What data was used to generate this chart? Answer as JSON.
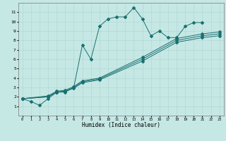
{
  "xlabel": "Humidex (Indice chaleur)",
  "xlim": [
    -0.5,
    23.5
  ],
  "ylim": [
    0,
    12
  ],
  "xticks": [
    0,
    1,
    2,
    3,
    4,
    5,
    6,
    7,
    8,
    9,
    10,
    11,
    12,
    13,
    14,
    15,
    16,
    17,
    18,
    19,
    20,
    21,
    22,
    23
  ],
  "yticks": [
    1,
    2,
    3,
    4,
    5,
    6,
    7,
    8,
    9,
    10,
    11
  ],
  "bg_color": "#c5e8e5",
  "line_color": "#1a7070",
  "grid_color": "#aed4d0",
  "line1_x": [
    0,
    1,
    2,
    3,
    4,
    5,
    6,
    7,
    8,
    9,
    10,
    11,
    12,
    13,
    14,
    15,
    16,
    17,
    18,
    19,
    20,
    21
  ],
  "line1_y": [
    1.8,
    1.5,
    1.1,
    1.8,
    2.5,
    2.5,
    3.0,
    7.5,
    6.0,
    9.5,
    10.3,
    10.5,
    10.5,
    11.5,
    10.3,
    8.5,
    9.0,
    8.3,
    8.3,
    9.5,
    9.9,
    9.9
  ],
  "line2_x": [
    0,
    3,
    4,
    5,
    6,
    7,
    9,
    14,
    18,
    21,
    23
  ],
  "line2_y": [
    1.8,
    2.0,
    2.5,
    2.6,
    2.9,
    3.5,
    3.8,
    5.8,
    7.8,
    8.3,
    8.5
  ],
  "line3_x": [
    0,
    3,
    4,
    5,
    6,
    7,
    9,
    14,
    18,
    21,
    23
  ],
  "line3_y": [
    1.8,
    2.0,
    2.5,
    2.6,
    3.0,
    3.6,
    3.9,
    6.0,
    8.0,
    8.5,
    8.7
  ],
  "line4_x": [
    0,
    3,
    4,
    5,
    6,
    7,
    9,
    14,
    18,
    21,
    23
  ],
  "line4_y": [
    1.8,
    2.1,
    2.6,
    2.7,
    3.1,
    3.7,
    4.0,
    6.2,
    8.2,
    8.7,
    8.9
  ]
}
